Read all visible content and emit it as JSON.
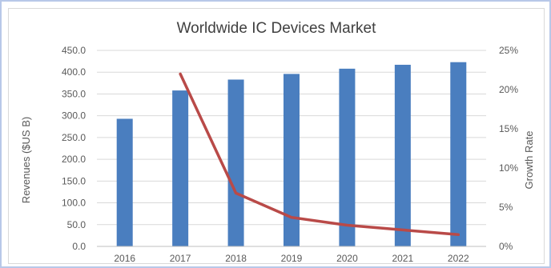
{
  "chart_data": {
    "type": "bar",
    "title": "Worldwide IC Devices Market",
    "categories": [
      "2016",
      "2017",
      "2018",
      "2019",
      "2020",
      "2021",
      "2022"
    ],
    "series": [
      {
        "type": "bar",
        "axis": "left",
        "values": [
          293.0,
          358.0,
          383.0,
          396.0,
          408.0,
          417.0,
          423.0
        ]
      },
      {
        "type": "line",
        "axis": "right",
        "values": [
          null,
          22.0,
          6.8,
          3.7,
          2.7,
          2.1,
          1.5
        ]
      }
    ],
    "ylabel": "Revenues ($US B)",
    "y2label": "Growth Rate",
    "ylim": [
      0,
      450
    ],
    "y2lim": [
      0,
      25
    ],
    "yticks": [
      "0.0",
      "50.0",
      "100.0",
      "150.0",
      "200.0",
      "250.0",
      "300.0",
      "350.0",
      "400.0",
      "450.0"
    ],
    "y2ticks": [
      "0%",
      "5%",
      "10%",
      "15%",
      "20%",
      "25%"
    ],
    "grid": true,
    "colors": {
      "bar": "#4a7ebf",
      "line": "#b94a48",
      "grid": "#d9d9d9",
      "text": "#595959"
    }
  }
}
